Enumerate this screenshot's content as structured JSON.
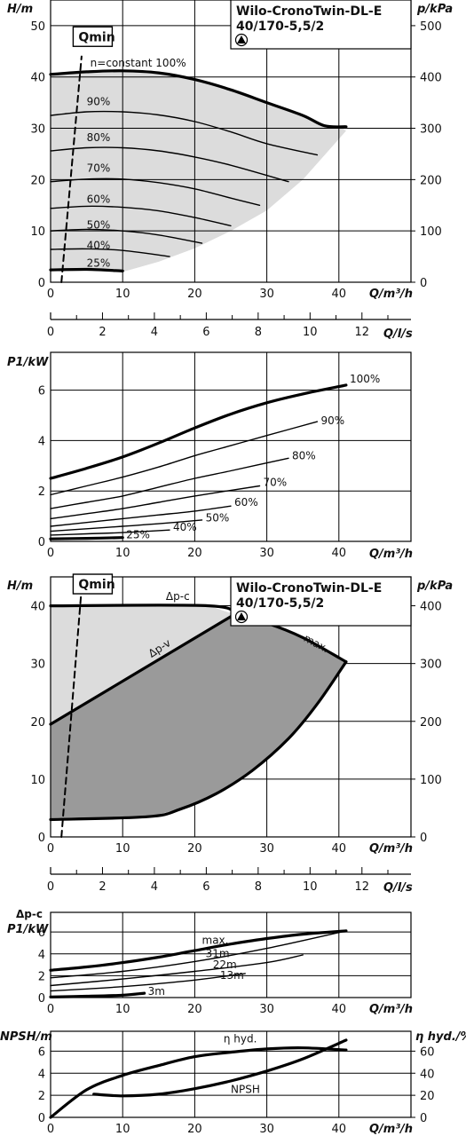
{
  "chart_data": [
    {
      "id": "hq",
      "type": "line",
      "title": "Wilo-CronoTwin-DL-E",
      "subtitle": "40/170-5,5/2",
      "xlabel": "Q/m³/h",
      "ylabel": "H/m",
      "y2label": "p/kPa",
      "xlim": [
        0,
        50
      ],
      "ylim": [
        0,
        55
      ],
      "y2lim": [
        0,
        550
      ],
      "xticks": [
        0,
        10,
        20,
        30,
        40
      ],
      "yticks": [
        0,
        10,
        20,
        30,
        40,
        50
      ],
      "y2ticks": [
        0,
        100,
        200,
        300,
        400,
        500
      ],
      "grid": true,
      "annotations": [
        {
          "text": "Qmin",
          "x": 3.5,
          "y": 47,
          "boxed": true
        },
        {
          "text": "n=constant 100%",
          "x": 5.5,
          "y": 42
        },
        {
          "text": "90%",
          "x": 5,
          "y": 34.5
        },
        {
          "text": "80%",
          "x": 5,
          "y": 27.5
        },
        {
          "text": "70%",
          "x": 5,
          "y": 21.5
        },
        {
          "text": "60%",
          "x": 5,
          "y": 15.5
        },
        {
          "text": "50%",
          "x": 5,
          "y": 10.5
        },
        {
          "text": "40%",
          "x": 5,
          "y": 6.5
        },
        {
          "text": "25%",
          "x": 5,
          "y": 3
        }
      ],
      "series": [
        {
          "name": "100%",
          "x": [
            0,
            5,
            10,
            15,
            20,
            25,
            30,
            35,
            38,
            41
          ],
          "y": [
            40.5,
            41,
            41.2,
            40.8,
            39.5,
            37.5,
            35,
            32.5,
            30.5,
            30.3
          ],
          "weight": "bold"
        },
        {
          "name": "90%",
          "x": [
            0,
            5,
            10,
            15,
            20,
            25,
            30,
            37
          ],
          "y": [
            32.5,
            33.2,
            33.2,
            32.6,
            31.3,
            29.3,
            27,
            24.8
          ]
        },
        {
          "name": "80%",
          "x": [
            0,
            5,
            10,
            15,
            20,
            25,
            33
          ],
          "y": [
            25.6,
            26.2,
            26.2,
            25.6,
            24.4,
            22.8,
            19.6
          ]
        },
        {
          "name": "70%",
          "x": [
            0,
            5,
            10,
            15,
            20,
            25,
            29
          ],
          "y": [
            19.6,
            20.1,
            20.1,
            19.4,
            18.2,
            16.4,
            15
          ]
        },
        {
          "name": "60%",
          "x": [
            0,
            5,
            10,
            15,
            20,
            25
          ],
          "y": [
            14.4,
            14.8,
            14.6,
            13.9,
            12.6,
            11
          ]
        },
        {
          "name": "50%",
          "x": [
            0,
            5,
            10,
            15,
            21
          ],
          "y": [
            10,
            10.3,
            10,
            9.2,
            7.6
          ]
        },
        {
          "name": "40%",
          "x": [
            0,
            5,
            10,
            16.5
          ],
          "y": [
            6.4,
            6.5,
            6.2,
            5
          ]
        },
        {
          "name": "25%",
          "x": [
            0,
            5,
            10
          ],
          "y": [
            2.4,
            2.5,
            2.2
          ],
          "weight": "bold"
        },
        {
          "name": "Qmin",
          "x": [
            1.5,
            4.3
          ],
          "y": [
            0,
            44
          ],
          "style": "dashed"
        }
      ],
      "region_upper": {
        "x": [
          0,
          5,
          10,
          15,
          20,
          25,
          30,
          35,
          38,
          40,
          41
        ],
        "y": [
          40.5,
          41,
          41.2,
          40.8,
          39.5,
          37.5,
          35,
          32.5,
          30.5,
          30.3,
          29.5
        ]
      },
      "region_lower": {
        "x": [
          41,
          35,
          30,
          25,
          20,
          15,
          10,
          5,
          0
        ],
        "y": [
          29.5,
          20,
          14,
          10,
          6.6,
          4,
          2,
          2.5,
          2.4
        ]
      }
    },
    {
      "id": "qls1",
      "type": "axis",
      "xlabel": "Q/l/s",
      "xlim": [
        0,
        13.889
      ],
      "xticks": [
        0,
        2,
        4,
        6,
        8,
        10,
        12
      ]
    },
    {
      "id": "p1",
      "type": "line",
      "xlabel": "Q/m³/h",
      "ylabel": "P1/kW",
      "xlim": [
        0,
        50
      ],
      "ylim": [
        0,
        7.5
      ],
      "xticks": [
        0,
        10,
        20,
        30,
        40
      ],
      "yticks": [
        0,
        2,
        4,
        6
      ],
      "grid": true,
      "series": [
        {
          "name": "100%",
          "x": [
            0,
            5,
            10,
            15,
            20,
            25,
            30,
            35,
            41
          ],
          "y": [
            2.5,
            2.9,
            3.35,
            3.9,
            4.5,
            5.05,
            5.5,
            5.85,
            6.2
          ],
          "weight": "bold"
        },
        {
          "name": "90%",
          "x": [
            0,
            5,
            10,
            15,
            20,
            25,
            30,
            37
          ],
          "y": [
            1.85,
            2.2,
            2.55,
            2.95,
            3.4,
            3.8,
            4.2,
            4.75
          ]
        },
        {
          "name": "80%",
          "x": [
            0,
            5,
            10,
            15,
            20,
            25,
            33
          ],
          "y": [
            1.3,
            1.55,
            1.8,
            2.15,
            2.5,
            2.8,
            3.3
          ]
        },
        {
          "name": "70%",
          "x": [
            0,
            5,
            10,
            15,
            20,
            29
          ],
          "y": [
            0.9,
            1.1,
            1.3,
            1.55,
            1.8,
            2.2
          ]
        },
        {
          "name": "60%",
          "x": [
            0,
            5,
            10,
            15,
            20,
            25
          ],
          "y": [
            0.6,
            0.75,
            0.9,
            1.05,
            1.2,
            1.4
          ]
        },
        {
          "name": "50%",
          "x": [
            0,
            5,
            10,
            15,
            21
          ],
          "y": [
            0.4,
            0.5,
            0.6,
            0.7,
            0.85
          ]
        },
        {
          "name": "40%",
          "x": [
            0,
            5,
            10,
            16.5
          ],
          "y": [
            0.25,
            0.3,
            0.35,
            0.45
          ]
        },
        {
          "name": "25%",
          "x": [
            0,
            5,
            10
          ],
          "y": [
            0.1,
            0.12,
            0.15
          ],
          "weight": "bold"
        }
      ],
      "annotations": [
        {
          "text": "100%",
          "x": 41.5,
          "y": 6.3
        },
        {
          "text": "90%",
          "x": 37.5,
          "y": 4.65
        },
        {
          "text": "80%",
          "x": 33.5,
          "y": 3.25
        },
        {
          "text": "70%",
          "x": 29.5,
          "y": 2.2
        },
        {
          "text": "60%",
          "x": 25.5,
          "y": 1.4
        },
        {
          "text": "50%",
          "x": 21.5,
          "y": 0.8
        },
        {
          "text": "40%",
          "x": 17,
          "y": 0.42
        },
        {
          "text": "25%",
          "x": 10.5,
          "y": 0.12
        }
      ]
    },
    {
      "id": "hq2",
      "type": "line",
      "title": "Wilo-CronoTwin-DL-E",
      "subtitle": "40/170-5,5/2",
      "xlabel": "Q/m³/h",
      "ylabel": "H/m",
      "y2label": "p/kPa",
      "xlim": [
        0,
        50
      ],
      "ylim": [
        0,
        45
      ],
      "y2lim": [
        0,
        450
      ],
      "xticks": [
        0,
        10,
        20,
        30,
        40
      ],
      "yticks": [
        0,
        10,
        20,
        30,
        40
      ],
      "y2ticks": [
        0,
        100,
        200,
        300,
        400
      ],
      "grid": true,
      "annotations": [
        {
          "text": "Qmin",
          "x": 3.5,
          "y": 43,
          "boxed": true
        },
        {
          "text": "Δp-c",
          "x": 16,
          "y": 41
        },
        {
          "text": "Δp-v",
          "x": 14,
          "y": 31,
          "rotate": -33
        },
        {
          "text": "max.",
          "x": 35,
          "y": 34,
          "rotate": 28
        }
      ],
      "series": [
        {
          "name": "Δp-c",
          "x": [
            0,
            22,
            25.5
          ],
          "y": [
            40,
            40,
            38.5
          ],
          "weight": "bold"
        },
        {
          "name": "Δp-v",
          "x": [
            0,
            25.5
          ],
          "y": [
            19.5,
            38.5
          ],
          "weight": "bold"
        },
        {
          "name": "max.",
          "x": [
            25.5,
            30,
            35,
            41
          ],
          "y": [
            38.5,
            37,
            34.5,
            30.3
          ],
          "weight": "bold"
        },
        {
          "name": "max-lower",
          "x": [
            41,
            37,
            33,
            28,
            23,
            18,
            13.5,
            0
          ],
          "y": [
            30.3,
            23,
            17,
            11.5,
            7.5,
            4.8,
            3.5,
            3
          ],
          "weight": "bold"
        },
        {
          "name": "Qmin",
          "x": [
            1.5,
            4.3
          ],
          "y": [
            0,
            43
          ],
          "style": "dashed"
        }
      ]
    },
    {
      "id": "qls2",
      "type": "axis",
      "xlabel": "Q/l/s",
      "xlim": [
        0,
        13.889
      ],
      "xticks": [
        0,
        2,
        4,
        6,
        8,
        10,
        12
      ]
    },
    {
      "id": "p1b",
      "type": "line",
      "xlabel": "Q/m³/h",
      "ylabel": "P1/kW",
      "ylabel_top": "Δp-c",
      "xlim": [
        0,
        50
      ],
      "ylim": [
        0,
        7.8
      ],
      "xticks": [
        0,
        10,
        20,
        30,
        40
      ],
      "yticks": [
        0,
        2,
        4,
        6
      ],
      "grid": true,
      "series": [
        {
          "name": "max.",
          "x": [
            0,
            5,
            10,
            15,
            20,
            25,
            30,
            35,
            41
          ],
          "y": [
            2.5,
            2.8,
            3.2,
            3.7,
            4.3,
            4.9,
            5.4,
            5.8,
            6.1
          ],
          "weight": "bold"
        },
        {
          "name": "31m",
          "x": [
            0,
            10,
            20,
            30,
            41
          ],
          "y": [
            1.8,
            2.4,
            3.3,
            4.5,
            6.1
          ]
        },
        {
          "name": "22m",
          "x": [
            0,
            10,
            20,
            30,
            35
          ],
          "y": [
            1.1,
            1.7,
            2.4,
            3.2,
            3.9
          ]
        },
        {
          "name": "13m",
          "x": [
            0,
            10,
            20,
            27
          ],
          "y": [
            0.6,
            1.0,
            1.6,
            2.2
          ]
        },
        {
          "name": "3m",
          "x": [
            0,
            5,
            10,
            13
          ],
          "y": [
            0.05,
            0.12,
            0.22,
            0.4
          ],
          "weight": "bold"
        }
      ],
      "annotations": [
        {
          "text": "max.",
          "x": 21,
          "y": 4.9
        },
        {
          "text": "31m",
          "x": 21.5,
          "y": 3.7
        },
        {
          "text": "22m",
          "x": 22.5,
          "y": 2.7
        },
        {
          "text": "13m",
          "x": 23.5,
          "y": 1.7
        },
        {
          "text": "3m",
          "x": 13.5,
          "y": 0.25
        }
      ]
    },
    {
      "id": "npsh",
      "type": "line",
      "xlabel": "Q/m³/h",
      "ylabel": "NPSH/m",
      "y2label": "η hyd./%",
      "xlim": [
        0,
        50
      ],
      "ylim": [
        0,
        7.8
      ],
      "y2lim": [
        0,
        78
      ],
      "xticks": [
        0,
        10,
        20,
        30,
        40
      ],
      "yticks": [
        0,
        2,
        4,
        6
      ],
      "y2ticks": [
        0,
        20,
        40,
        60
      ],
      "grid": true,
      "series": [
        {
          "name": "η hyd.",
          "axis": "y2",
          "x": [
            0,
            5,
            10,
            15,
            20,
            25,
            30,
            35,
            41
          ],
          "y": [
            0,
            25,
            38,
            47,
            55,
            59,
            62,
            63,
            61
          ],
          "weight": "bold"
        },
        {
          "name": "NPSH",
          "axis": "y",
          "x": [
            6,
            10,
            15,
            20,
            25,
            30,
            35,
            41
          ],
          "y": [
            2.1,
            1.95,
            2.1,
            2.6,
            3.3,
            4.2,
            5.3,
            7.0
          ],
          "weight": "bold"
        }
      ],
      "annotations": [
        {
          "text": "η hyd.",
          "x": 24,
          "y": 6.8
        },
        {
          "text": "NPSH",
          "x": 25,
          "y": 2.2
        }
      ]
    }
  ]
}
